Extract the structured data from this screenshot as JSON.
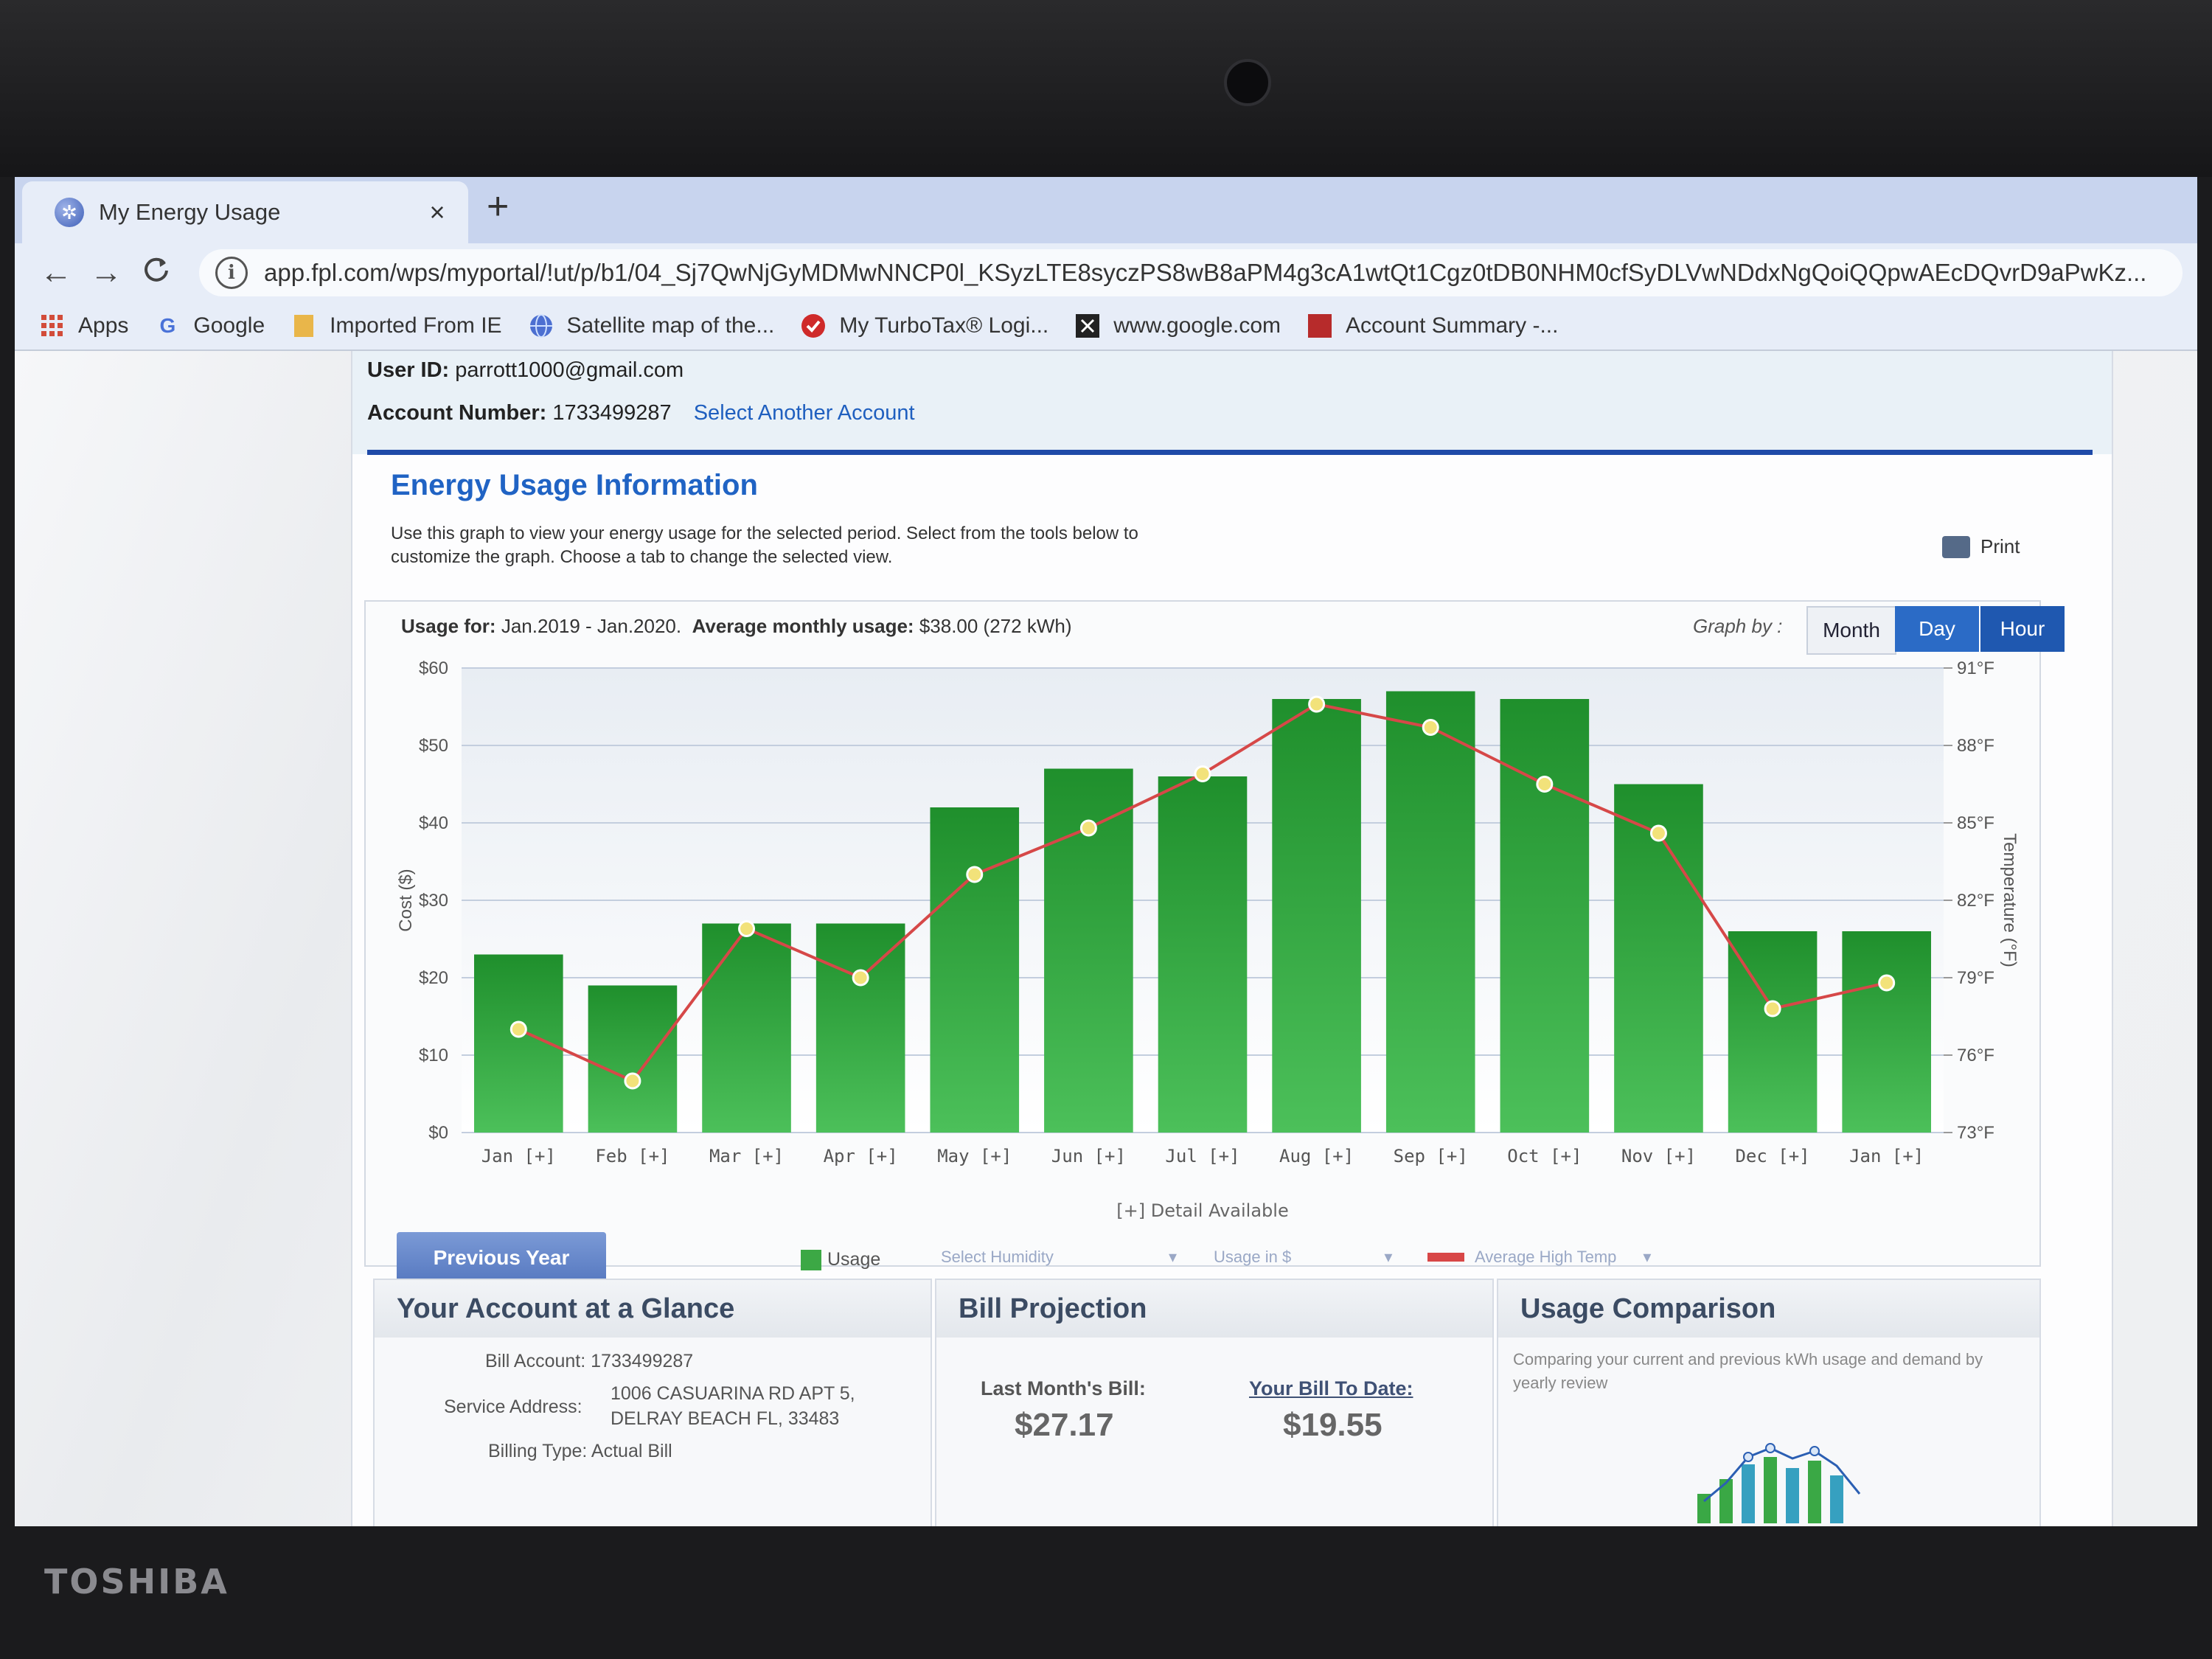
{
  "browser": {
    "tab_title": "My Energy Usage",
    "tab_close": "×",
    "new_tab": "+",
    "url": "app.fpl.com/wps/myportal/!ut/p/b1/04_Sj7QwNjGyMDMwNNCP0l_KSyzLTE8syczPS8wB8aPM4g3cA1wtQt1Cgz0tDB0NHM0cfSyDLVwNDdxNgQoiQQpwAEcDQvrD9aPwKz...",
    "nav": {
      "back": "←",
      "forward": "→",
      "reload": "C"
    },
    "bookmarks": [
      {
        "label": "Apps",
        "icon": "apps-grid-icon"
      },
      {
        "label": "Google",
        "icon": "google-g-icon"
      },
      {
        "label": "Imported From IE",
        "icon": "folder-icon"
      },
      {
        "label": "Satellite map of the...",
        "icon": "globe-icon"
      },
      {
        "label": "My TurboTax® Logi...",
        "icon": "turbotax-check-icon"
      },
      {
        "label": "www.google.com",
        "icon": "x-box-icon"
      },
      {
        "label": "Account Summary -...",
        "icon": "bookmark-red-icon"
      }
    ]
  },
  "account": {
    "user_id_label": "User ID:",
    "user_id": "parrott1000@gmail.com",
    "account_number_label": "Account Number:",
    "account_number": "1733499287",
    "select_another": "Select Another Account"
  },
  "energy": {
    "title": "Energy Usage Information",
    "description": "Use this graph to view your energy usage for the selected period. Select from the tools below to customize the graph. Choose a tab to change the selected view.",
    "print_label": "Print",
    "usage_for_label": "Usage for:",
    "usage_for_value": "Jan.2019 - Jan.2020.",
    "avg_label": "Average monthly usage:",
    "avg_value": "$38.00 (272 kWh)",
    "graph_by": "Graph by :",
    "tabs": {
      "month": "Month",
      "day": "Day",
      "hour": "Hour"
    },
    "detail_note": "[+] Detail Available",
    "previous_year": "Previous Year",
    "legend_usage": "Usage",
    "select_humidity": "Select Humidity",
    "usage_in": "Usage in $",
    "avg_high_temp": "Average High Temp"
  },
  "chart_data": {
    "type": "bar",
    "categories": [
      "Jan [+]",
      "Feb [+]",
      "Mar [+]",
      "Apr [+]",
      "May [+]",
      "Jun [+]",
      "Jul [+]",
      "Aug [+]",
      "Sep [+]",
      "Oct [+]",
      "Nov [+]",
      "Dec [+]",
      "Jan [+]"
    ],
    "series": [
      {
        "name": "Usage",
        "axis": "left",
        "type": "bar",
        "color": "#37a43f",
        "values": [
          23,
          19,
          27,
          27,
          42,
          47,
          46,
          56,
          57,
          56,
          45,
          26,
          26
        ]
      },
      {
        "name": "Average High Temp",
        "axis": "right",
        "type": "line",
        "color": "#d64848",
        "values": [
          77.0,
          75.0,
          80.9,
          79.0,
          83.0,
          84.8,
          86.9,
          89.6,
          88.7,
          86.5,
          84.6,
          77.8,
          78.8
        ]
      }
    ],
    "ylabel": "Cost ($)",
    "y2label": "Temperature (°F)",
    "ylim": [
      0,
      60
    ],
    "y2lim": [
      73,
      91
    ],
    "yticks": [
      "$0",
      "$10",
      "$20",
      "$30",
      "$40",
      "$50",
      "$60"
    ],
    "y2ticks": [
      "73°F",
      "76°F",
      "79°F",
      "82°F",
      "85°F",
      "88°F",
      "91°F"
    ],
    "grid": true
  },
  "glance": {
    "title": "Your Account at a Glance",
    "bill_account_label": "Bill Account:",
    "bill_account": "1733499287",
    "service_address_label": "Service Address:",
    "service_address_line1": "1006 CASUARINA RD APT 5,",
    "service_address_line2": "DELRAY BEACH FL, 33483",
    "billing_type_label": "Billing Type:",
    "billing_type": "Actual Bill"
  },
  "projection": {
    "title": "Bill Projection",
    "last_month_label": "Last Month's Bill:",
    "last_month_value": "$27.17",
    "to_date_label": "Your Bill To Date:",
    "to_date_value": "$19.55"
  },
  "comparison": {
    "title": "Usage Comparison",
    "text": "Comparing your current and previous kWh usage and demand by yearly review"
  },
  "device": {
    "brand": "TOSHIBA"
  }
}
